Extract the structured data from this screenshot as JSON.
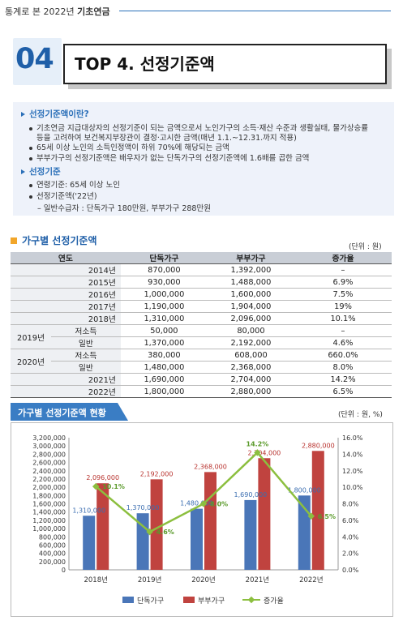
{
  "header": {
    "prefix": "통계로 본 2022년",
    "bold": "기초연금"
  },
  "section_number": "04",
  "section_title": "TOP 4. 선정기준액",
  "info": {
    "heading1": "선정기준액이란?",
    "bullet1_line1": "기초연금 지급대상자의 선정기준이 되는 금액으로서 노인가구의 소득·재산 수준과 생활실태, 물가상승률",
    "bullet1_line2": "등을 고려하여 보건복지부장관이 결정·고시한 금액(매년 1.1.~12.31.까지 적용)",
    "bullet2": "65세 이상 노인의 소득인정액이 하위 70%에 해당되는 금액",
    "bullet3": "부부가구의 선정기준액은 배우자가 없는 단독가구의 선정기준액에 1.6배를 곱한 금액",
    "heading2": "선정기준",
    "bullet4": "연령기준: 65세 이상 노인",
    "bullet5": "선정기준액('22년)",
    "sub5": "– 일반수급자 : 단독가구 180만원, 부부가구 288만원"
  },
  "table_section": {
    "title": "가구별 선정기준액",
    "unit": "(단위 : 원)",
    "headers": [
      "연도",
      "단독가구",
      "부부가구",
      "증가율"
    ],
    "rows": [
      {
        "year": "2014년",
        "sub": "",
        "single": "870,000",
        "couple": "1,392,000",
        "rate": "–"
      },
      {
        "year": "2015년",
        "sub": "",
        "single": "930,000",
        "couple": "1,488,000",
        "rate": "6.9%"
      },
      {
        "year": "2016년",
        "sub": "",
        "single": "1,000,000",
        "couple": "1,600,000",
        "rate": "7.5%"
      },
      {
        "year": "2017년",
        "sub": "",
        "single": "1,190,000",
        "couple": "1,904,000",
        "rate": "19%"
      },
      {
        "year": "2018년",
        "sub": "",
        "single": "1,310,000",
        "couple": "2,096,000",
        "rate": "10.1%"
      },
      {
        "year": "2019년",
        "sub": "저소득",
        "single": "50,000",
        "couple": "80,000",
        "rate": "–"
      },
      {
        "year": "2019년",
        "sub": "일반",
        "single": "1,370,000",
        "couple": "2,192,000",
        "rate": "4.6%"
      },
      {
        "year": "2020년",
        "sub": "저소득",
        "single": "380,000",
        "couple": "608,000",
        "rate": "660.0%"
      },
      {
        "year": "2020년",
        "sub": "일반",
        "single": "1,480,000",
        "couple": "2,368,000",
        "rate": "8.0%"
      },
      {
        "year": "2021년",
        "sub": "",
        "single": "1,690,000",
        "couple": "2,704,000",
        "rate": "14.2%"
      },
      {
        "year": "2022년",
        "sub": "",
        "single": "1,800,000",
        "couple": "2,880,000",
        "rate": "6.5%"
      }
    ]
  },
  "chart_section": {
    "title": "가구별 선정기준액 현황",
    "unit": "(단위 : 원, %)"
  },
  "chart_data": {
    "type": "bar",
    "categories": [
      "2018년",
      "2019년",
      "2020년",
      "2021년",
      "2022년"
    ],
    "series": [
      {
        "name": "단독가구",
        "values": [
          1310000,
          1370000,
          1480000,
          1690000,
          1800000
        ],
        "labels": [
          "1,310,000",
          "1,370,000",
          "1,480,000",
          "1,690,000",
          "1,800,000"
        ],
        "color": "#4a76b8"
      },
      {
        "name": "부부가구",
        "values": [
          2096000,
          2192000,
          2368000,
          2704000,
          2880000
        ],
        "labels": [
          "2,096,000",
          "2,192,000",
          "2,368,000",
          "2,704,000",
          "2,880,000"
        ],
        "color": "#c0433f"
      },
      {
        "name": "증가율",
        "type": "line",
        "axis": "right",
        "values": [
          10.1,
          4.6,
          8.0,
          14.2,
          6.5
        ],
        "labels": [
          "10.1%",
          "4.6%",
          "8.0%",
          "14.2%",
          "6.5%"
        ],
        "color": "#8cbf3f"
      }
    ],
    "ylim_left": [
      0,
      3200000
    ],
    "ylim_right": [
      0,
      16
    ],
    "yticks_left": [
      "3,200,000",
      "3,000,000",
      "2,800,000",
      "2,600,000",
      "2,400,000",
      "2,200,000",
      "2,000,000",
      "1,800,000",
      "1,600,000",
      "1,400,000",
      "1,200,000",
      "1,000,000",
      "800,000",
      "600,000",
      "400,000",
      "200,000",
      "0"
    ],
    "yticks_right": [
      "16.0%",
      "14.0%",
      "12.0%",
      "10.0%",
      "8.0%",
      "6.0%",
      "4.0%",
      "2.0%",
      "0.0%"
    ],
    "legend": "bottom",
    "grid": false
  }
}
